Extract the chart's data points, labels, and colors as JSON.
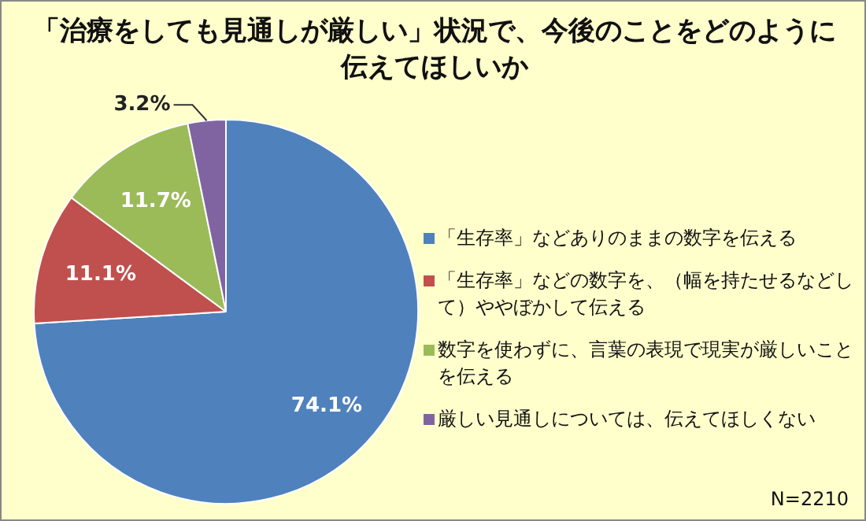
{
  "chart_data": {
    "type": "pie",
    "title": "「治療をしても見通しが厳しい」状況で、今後のことをどのように伝えてほしいか",
    "categories": [
      "「生存率」などありのままの数字を伝える",
      "「生存率」などの数字を、（幅を持たせるなどして）ややぼかして伝える",
      "数字を使わずに、言葉の表現で現実が厳しいことを伝える",
      "厳しい見通しについては、伝えてほしくない"
    ],
    "values": [
      74.1,
      11.1,
      11.7,
      3.2
    ],
    "value_labels": [
      "74.1%",
      "11.1%",
      "11.7%",
      "3.2%"
    ],
    "colors": [
      "#4f81bd",
      "#c0504d",
      "#9bbb59",
      "#8064a2"
    ],
    "legend": "right",
    "annotations": [
      "N=2210"
    ]
  }
}
